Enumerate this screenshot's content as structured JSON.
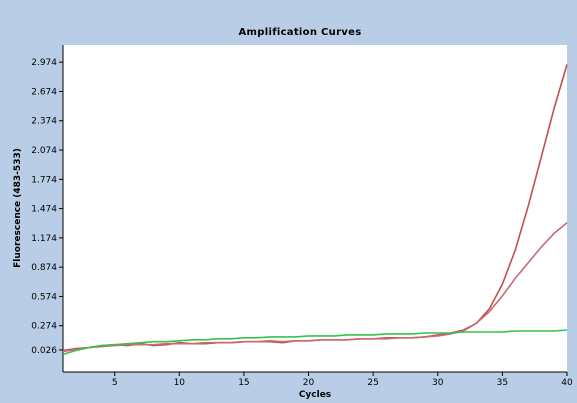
{
  "chart_data": {
    "type": "line",
    "title": "Amplification Curves",
    "xlabel": "Cycles",
    "ylabel": "Fluorescence (483-533)",
    "xlim": [
      1,
      40
    ],
    "ylim": [
      -0.2,
      3.15
    ],
    "x_ticks": [
      5,
      10,
      15,
      20,
      25,
      30,
      35,
      40
    ],
    "x_tick_labels": [
      "5",
      "10",
      "15",
      "20",
      "25",
      "30",
      "35",
      "40"
    ],
    "y_ticks": [
      0.026,
      0.274,
      0.574,
      0.874,
      1.174,
      1.474,
      1.774,
      2.074,
      2.374,
      2.674,
      2.974
    ],
    "y_tick_labels": [
      "0.026",
      "0.274",
      "0.574",
      "0.874",
      "1.174",
      "1.474",
      "1.774",
      "2.074",
      "2.374",
      "2.674",
      "2.974"
    ],
    "grid": false,
    "x": [
      1,
      2,
      3,
      4,
      5,
      6,
      7,
      8,
      9,
      10,
      11,
      12,
      13,
      14,
      15,
      16,
      17,
      18,
      19,
      20,
      21,
      22,
      23,
      24,
      25,
      26,
      27,
      28,
      29,
      30,
      31,
      32,
      33,
      34,
      35,
      36,
      37,
      38,
      39,
      40
    ],
    "series": [
      {
        "color": "#c0504d",
        "values": [
          0.02,
          0.04,
          0.05,
          0.07,
          0.08,
          0.07,
          0.09,
          0.07,
          0.08,
          0.1,
          0.09,
          0.09,
          0.1,
          0.1,
          0.11,
          0.11,
          0.11,
          0.1,
          0.12,
          0.12,
          0.13,
          0.13,
          0.13,
          0.14,
          0.14,
          0.15,
          0.15,
          0.15,
          0.16,
          0.18,
          0.2,
          0.23,
          0.3,
          0.45,
          0.7,
          1.05,
          1.5,
          2.0,
          2.5,
          2.95
        ]
      },
      {
        "color": "#c86a78",
        "values": [
          0.01,
          0.03,
          0.05,
          0.06,
          0.07,
          0.08,
          0.08,
          0.08,
          0.09,
          0.09,
          0.09,
          0.1,
          0.1,
          0.1,
          0.11,
          0.11,
          0.12,
          0.11,
          0.12,
          0.12,
          0.13,
          0.13,
          0.13,
          0.14,
          0.14,
          0.14,
          0.15,
          0.15,
          0.16,
          0.17,
          0.19,
          0.22,
          0.3,
          0.42,
          0.58,
          0.76,
          0.92,
          1.08,
          1.22,
          1.33
        ]
      },
      {
        "color": "#39c24a",
        "values": [
          -0.02,
          0.02,
          0.05,
          0.07,
          0.08,
          0.09,
          0.1,
          0.11,
          0.11,
          0.12,
          0.13,
          0.13,
          0.14,
          0.14,
          0.15,
          0.15,
          0.16,
          0.16,
          0.16,
          0.17,
          0.17,
          0.17,
          0.18,
          0.18,
          0.18,
          0.19,
          0.19,
          0.19,
          0.2,
          0.2,
          0.2,
          0.21,
          0.21,
          0.21,
          0.21,
          0.22,
          0.22,
          0.22,
          0.22,
          0.23
        ]
      }
    ]
  }
}
